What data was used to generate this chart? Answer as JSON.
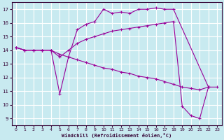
{
  "background_color": "#c8eaf0",
  "grid_color": "#ffffff",
  "line_color": "#990099",
  "marker_color": "#990099",
  "xlabel": "Windchill (Refroidissement éolien,°C)",
  "xlim": [
    -0.5,
    23.5
  ],
  "ylim": [
    8.5,
    17.5
  ],
  "xticks": [
    0,
    1,
    2,
    3,
    4,
    5,
    6,
    7,
    8,
    9,
    10,
    11,
    12,
    13,
    14,
    15,
    16,
    17,
    18,
    19,
    20,
    21,
    22,
    23
  ],
  "yticks": [
    9,
    10,
    11,
    12,
    13,
    14,
    15,
    16,
    17
  ],
  "curves": [
    {
      "x": [
        0,
        1,
        2,
        3,
        4,
        5,
        6,
        7,
        8,
        9,
        10,
        11,
        12,
        13,
        14,
        15,
        16,
        17,
        18,
        22
      ],
      "y": [
        14.2,
        14.0,
        14.0,
        14.0,
        14.0,
        10.8,
        13.5,
        15.5,
        15.9,
        16.1,
        17.0,
        16.7,
        16.8,
        16.7,
        17.0,
        17.0,
        17.1,
        17.0,
        17.0,
        11.3
      ]
    },
    {
      "x": [
        0,
        1,
        2,
        3,
        4,
        5,
        6,
        7,
        8,
        9,
        10,
        11,
        12,
        13,
        14,
        15,
        16,
        17,
        18,
        19,
        20,
        21,
        22
      ],
      "y": [
        14.2,
        14.0,
        14.0,
        14.0,
        14.0,
        13.5,
        14.0,
        14.5,
        14.8,
        15.0,
        15.2,
        15.4,
        15.5,
        15.6,
        15.7,
        15.8,
        15.9,
        16.0,
        16.1,
        9.9,
        9.2,
        9.0,
        11.3
      ]
    },
    {
      "x": [
        0,
        1,
        2,
        3,
        4,
        5,
        6,
        7,
        8,
        9,
        10,
        11,
        12,
        13,
        14,
        15,
        16,
        17,
        18,
        19,
        20,
        21,
        22,
        23
      ],
      "y": [
        14.2,
        14.0,
        14.0,
        14.0,
        14.0,
        13.7,
        13.5,
        13.3,
        13.1,
        12.9,
        12.7,
        12.6,
        12.4,
        12.3,
        12.1,
        12.0,
        11.9,
        11.7,
        11.5,
        11.3,
        11.2,
        11.1,
        11.3,
        11.3
      ]
    }
  ]
}
